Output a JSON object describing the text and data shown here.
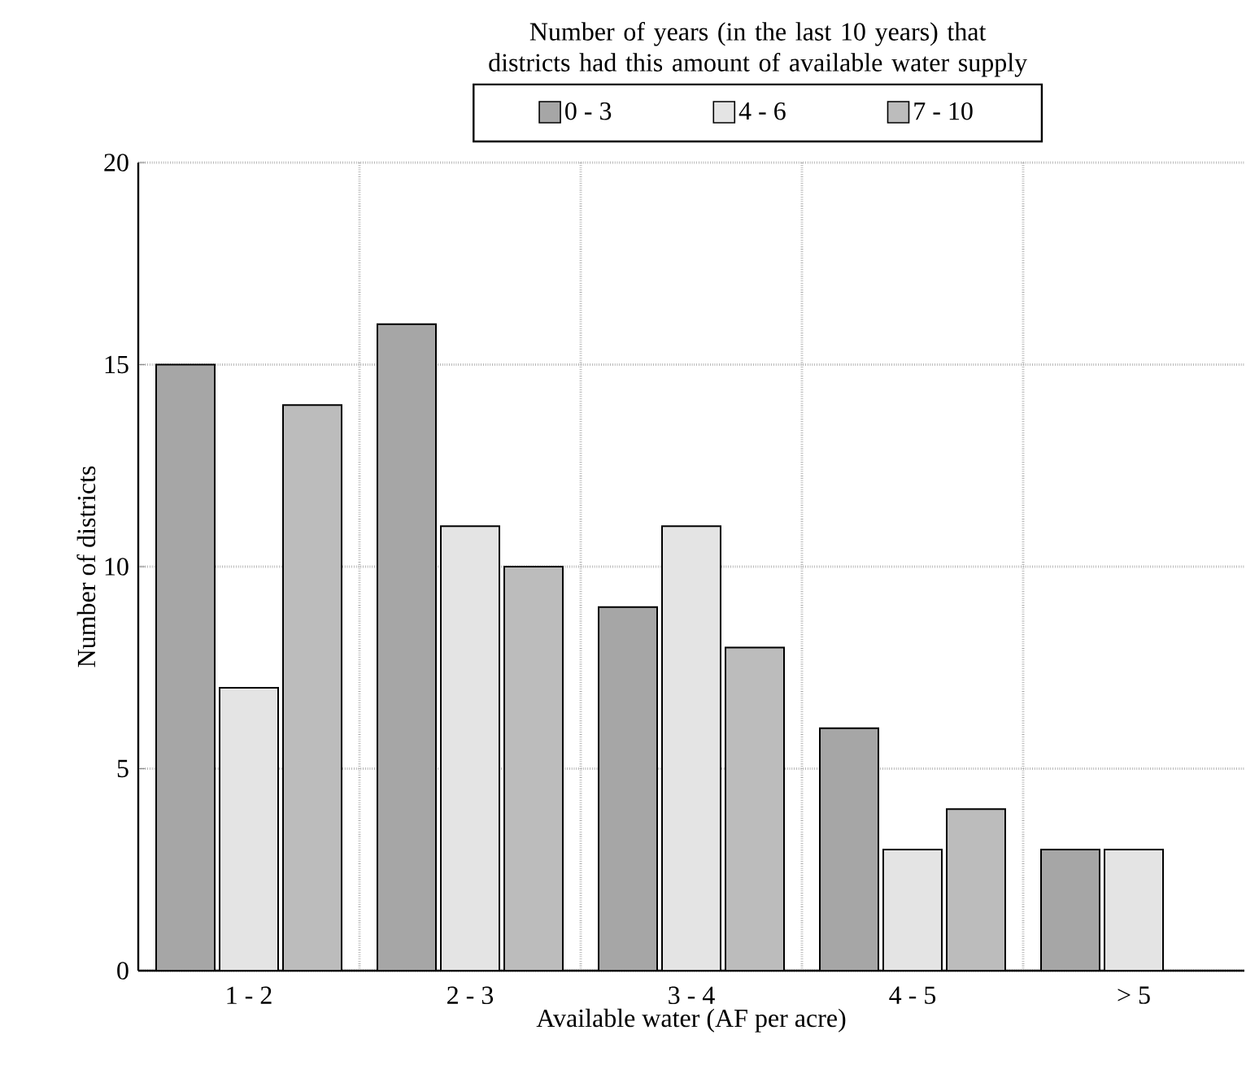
{
  "chart_data": {
    "type": "bar",
    "legend_title": "Number of years (in the last 10 years) that districts had this amount of available water supply",
    "xlabel": "Available water (AF per acre)",
    "ylabel": "Number of districts",
    "categories": [
      "1 - 2",
      "2 - 3",
      "3 - 4",
      "4 - 5",
      "> 5"
    ],
    "series": [
      {
        "name": "0 - 3",
        "color": "#a6a6a6",
        "values": [
          15,
          16,
          9,
          6,
          3
        ]
      },
      {
        "name": "4 - 6",
        "color": "#e4e4e4",
        "values": [
          7,
          11,
          11,
          3,
          3
        ]
      },
      {
        "name": "7 - 10",
        "color": "#bcbcbc",
        "values": [
          14,
          10,
          8,
          4,
          null
        ]
      }
    ],
    "ylim": [
      0,
      20
    ],
    "yticks": [
      0,
      5,
      10,
      15,
      20
    ],
    "grid": true,
    "legend": "top"
  }
}
